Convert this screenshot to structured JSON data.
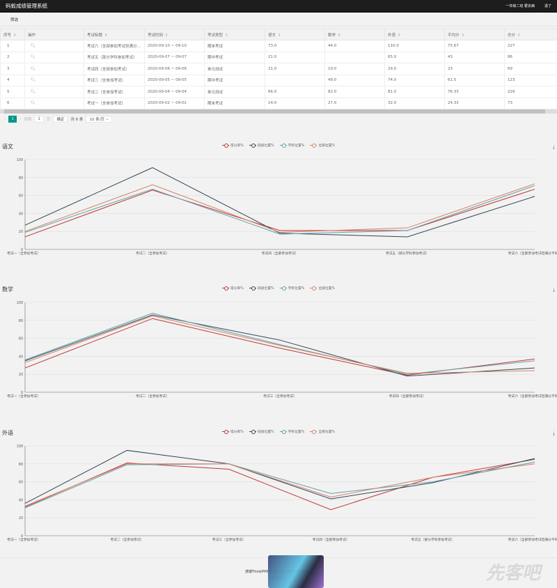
{
  "header": {
    "title": "码蚁成绩管理系统",
    "user": "一年级二班 霍去病",
    "logout": "退了"
  },
  "filter": {
    "label": "筛选"
  },
  "table": {
    "columns": [
      "序号",
      "操作",
      "考试标题",
      "考试时间",
      "考试类型",
      "语文",
      "数学",
      "外语",
      "平均分",
      "总分"
    ],
    "rows": [
      [
        "1",
        "",
        "考试六（全部参加考试但满分…",
        "2020-09-10 ~ 09-10",
        "期末考试",
        "73.0",
        "44.0",
        "110.0",
        "75.67",
        "227"
      ],
      [
        "2",
        "",
        "考试五（部分学科参加考试）",
        "2020-09-07 ~ 09-07",
        "期中考试",
        "21.0",
        "",
        "65.0",
        "43",
        "86"
      ],
      [
        "3",
        "",
        "考试四（全部参加考试）",
        "2020-09-06 ~ 09-06",
        "单元测试",
        "21.0",
        "19.0",
        "29.0",
        "23",
        "69"
      ],
      [
        "4",
        "",
        "考试三（全参加考试）",
        "2020-09-05 ~ 09-05",
        "期中考试",
        "",
        "49.0",
        "74.0",
        "61.5",
        "123"
      ],
      [
        "5",
        "",
        "考试二（全参加考试）",
        "2020-09-04 ~ 09-04",
        "单元测试",
        "66.0",
        "82.0",
        "81.0",
        "76.33",
        "229"
      ],
      [
        "6",
        "",
        "考试一（全参加考试）",
        "2020-09-02 ~ 09-02",
        "期末考试",
        "14.0",
        "27.0",
        "32.0",
        "24.33",
        "73"
      ]
    ]
  },
  "pager": {
    "current": "1",
    "goto_label": "到第",
    "page_value": "1",
    "page_unit": "页",
    "confirm": "确定",
    "total": "共 6 条",
    "page_size": "10 条/页"
  },
  "legend": [
    "得分率%",
    "班级位置%",
    "学校位置%",
    "全部位置%"
  ],
  "colors": [
    "#c23531",
    "#2f4554",
    "#61a0a8",
    "#d48265"
  ],
  "chart_data": [
    {
      "type": "line",
      "title": "语文",
      "ylim": [
        0,
        100
      ],
      "yticks": [
        "0",
        "20",
        "40",
        "60",
        "80",
        "100"
      ],
      "categories": [
        "考试一（全参加考试）",
        "考试二（全参加考试）",
        "考试四（全部参加考试）",
        "考试五（部分学科参加考试）",
        "考试六（全部参加考试但满分不同）"
      ],
      "series": [
        {
          "name": "得分率%",
          "values": [
            14,
            66,
            21,
            21,
            67
          ]
        },
        {
          "name": "班级位置%",
          "values": [
            27,
            91,
            18,
            14,
            59
          ]
        },
        {
          "name": "学校位置%",
          "values": [
            19,
            67,
            17,
            21,
            71
          ]
        },
        {
          "name": "全部位置%",
          "values": [
            20,
            72,
            19,
            24,
            73
          ]
        }
      ]
    },
    {
      "type": "line",
      "title": "数学",
      "ylim": [
        0,
        100
      ],
      "yticks": [
        "0",
        "20",
        "40",
        "60",
        "80",
        "100"
      ],
      "categories": [
        "考试一（全参加考试）",
        "考试二（全参加考试）",
        "考试三（全参加考试）",
        "考试四（全部参加考试）",
        "考试六（全部参加考试但满分不同）"
      ],
      "series": [
        {
          "name": "得分率%",
          "values": [
            27,
            82,
            49,
            19,
            37
          ]
        },
        {
          "name": "班级位置%",
          "values": [
            35,
            86,
            58,
            18,
            27
          ]
        },
        {
          "name": "学校位置%",
          "values": [
            36,
            88,
            53,
            20,
            35
          ]
        },
        {
          "name": "全部位置%",
          "values": [
            33,
            85,
            52,
            21,
            24
          ]
        }
      ]
    },
    {
      "type": "line",
      "title": "外语",
      "ylim": [
        0,
        100
      ],
      "yticks": [
        "0",
        "20",
        "40",
        "60",
        "80",
        "100"
      ],
      "categories": [
        "考试一（全参加考试）",
        "考试二（全参加考试）",
        "考试三（全参加考试）",
        "考试四（全部参加考试）",
        "考试五（部分学科参加考试）",
        "考试六（全部参加考试但满分不同）"
      ],
      "series": [
        {
          "name": "得分率%",
          "values": [
            32,
            81,
            74,
            29,
            65,
            85
          ]
        },
        {
          "name": "班级位置%",
          "values": [
            36,
            95,
            80,
            41,
            59,
            86
          ]
        },
        {
          "name": "学校位置%",
          "values": [
            31,
            79,
            80,
            47,
            60,
            82
          ]
        },
        {
          "name": "全部位置%",
          "values": [
            33,
            80,
            80,
            43,
            65,
            80
          ]
        }
      ]
    }
  ],
  "footer": {
    "line1": "感谢ThinkPHP X-admin…提供技术支持。",
    "line2": "本系统…"
  },
  "watermark": "先客吧"
}
